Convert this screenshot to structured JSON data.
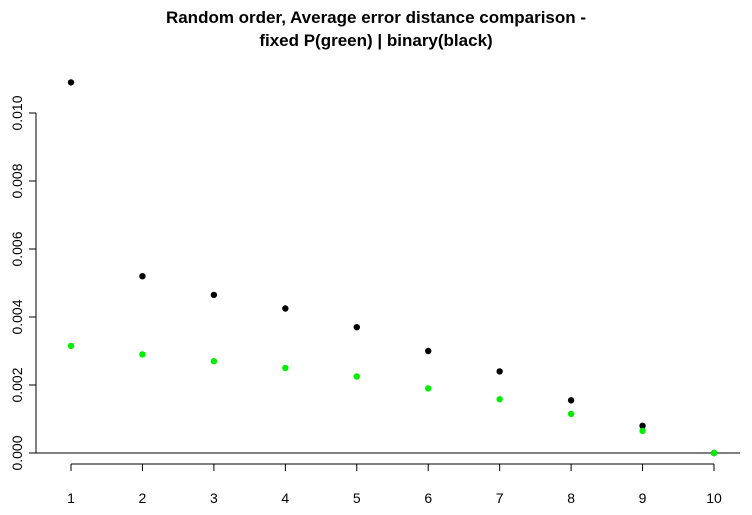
{
  "chart_data": {
    "type": "scatter",
    "title_line1": "Random order, Average error distance comparison -",
    "title_line2": "fixed P(green) | binary(black)",
    "xlabel": "",
    "ylabel": "",
    "x": [
      1,
      2,
      3,
      4,
      5,
      6,
      7,
      8,
      9,
      10
    ],
    "xlim": [
      1,
      10
    ],
    "ylim": [
      0,
      0.011
    ],
    "x_ticks": [
      "1",
      "2",
      "3",
      "4",
      "5",
      "6",
      "7",
      "8",
      "9",
      "10"
    ],
    "y_ticks": [
      "0.000",
      "0.002",
      "0.004",
      "0.006",
      "0.008",
      "0.010"
    ],
    "y_tick_values": [
      0,
      0.002,
      0.004,
      0.006,
      0.008,
      0.01
    ],
    "grid": false,
    "series": [
      {
        "color": "#000000",
        "values": [
          0.0109,
          0.0052,
          0.00465,
          0.00425,
          0.0037,
          0.003,
          0.0024,
          0.00155,
          0.0008,
          0.0
        ]
      },
      {
        "color": "#00ee00",
        "values": [
          0.00315,
          0.0029,
          0.0027,
          0.0025,
          0.00225,
          0.0019,
          0.00158,
          0.00115,
          0.00065,
          0.0
        ]
      }
    ]
  }
}
